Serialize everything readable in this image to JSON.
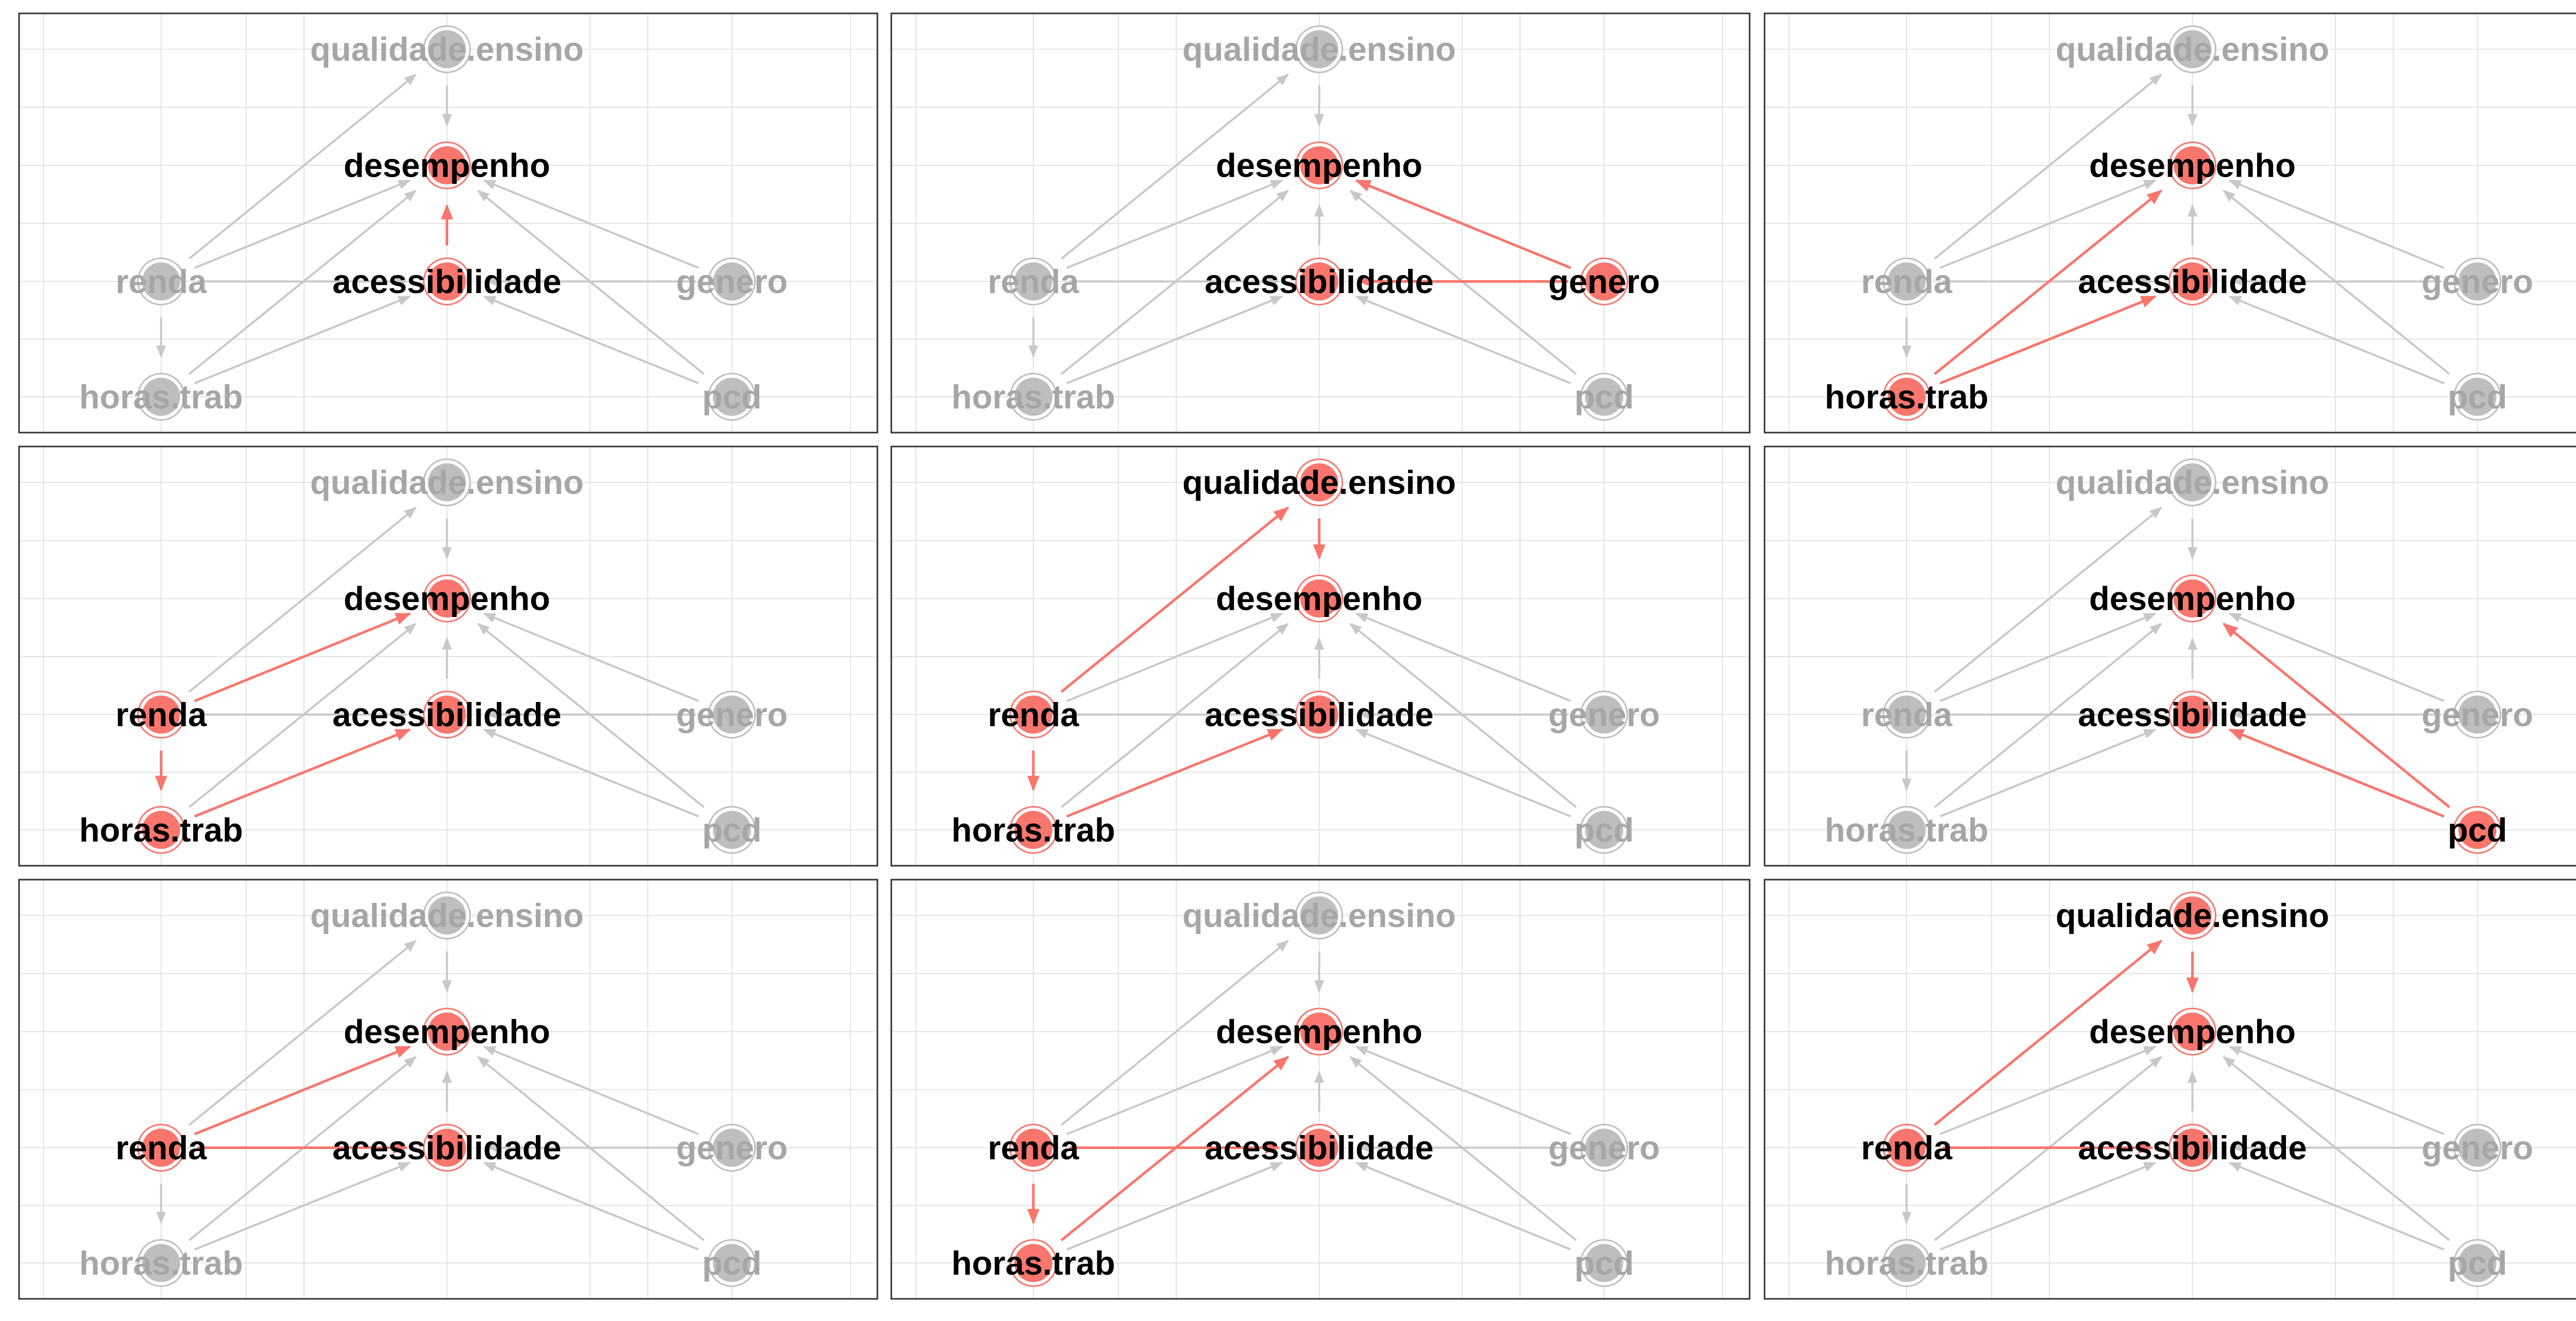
{
  "colors": {
    "highlight": "#F8766D",
    "dim_node": "#BEBEBE",
    "dim_edge": "#C8C8C8",
    "dim_label": "#A6A6A6",
    "active_label": "#000000",
    "grid": "#E2E2E2",
    "panel_border": "#333333"
  },
  "nodes": [
    {
      "id": "qualidade.ensino",
      "label": "qualidade.ensino",
      "x": 0,
      "y": 3
    },
    {
      "id": "desempenho",
      "label": "desempenho",
      "x": 0,
      "y": 2
    },
    {
      "id": "acessibilidade",
      "label": "acessibilidade",
      "x": 0,
      "y": 1
    },
    {
      "id": "renda",
      "label": "renda",
      "x": -1,
      "y": 1
    },
    {
      "id": "genero",
      "label": "genero",
      "x": 1,
      "y": 1
    },
    {
      "id": "horas.trab",
      "label": "horas.trab",
      "x": -1,
      "y": 0
    },
    {
      "id": "pcd",
      "label": "pcd",
      "x": 1,
      "y": 0
    }
  ],
  "edges": [
    {
      "from": "qualidade.ensino",
      "to": "desempenho"
    },
    {
      "from": "acessibilidade",
      "to": "desempenho"
    },
    {
      "from": "renda",
      "to": "desempenho"
    },
    {
      "from": "renda",
      "to": "qualidade.ensino"
    },
    {
      "from": "renda",
      "to": "acessibilidade"
    },
    {
      "from": "renda",
      "to": "horas.trab"
    },
    {
      "from": "genero",
      "to": "desempenho"
    },
    {
      "from": "genero",
      "to": "acessibilidade"
    },
    {
      "from": "horas.trab",
      "to": "desempenho"
    },
    {
      "from": "horas.trab",
      "to": "acessibilidade"
    },
    {
      "from": "pcd",
      "to": "desempenho"
    },
    {
      "from": "pcd",
      "to": "acessibilidade"
    }
  ],
  "panels": [
    {
      "nodes": [
        "desempenho",
        "acessibilidade"
      ],
      "edges": [
        [
          "acessibilidade",
          "desempenho"
        ]
      ]
    },
    {
      "nodes": [
        "desempenho",
        "acessibilidade",
        "genero"
      ],
      "edges": [
        [
          "genero",
          "desempenho"
        ],
        [
          "genero",
          "acessibilidade"
        ]
      ]
    },
    {
      "nodes": [
        "desempenho",
        "acessibilidade",
        "horas.trab"
      ],
      "edges": [
        [
          "horas.trab",
          "desempenho"
        ],
        [
          "horas.trab",
          "acessibilidade"
        ]
      ]
    },
    {
      "nodes": [
        "desempenho",
        "acessibilidade",
        "renda",
        "horas.trab"
      ],
      "edges": [
        [
          "renda",
          "desempenho"
        ],
        [
          "renda",
          "horas.trab"
        ],
        [
          "horas.trab",
          "acessibilidade"
        ]
      ]
    },
    {
      "nodes": [
        "qualidade.ensino",
        "desempenho",
        "acessibilidade",
        "renda",
        "horas.trab"
      ],
      "edges": [
        [
          "renda",
          "qualidade.ensino"
        ],
        [
          "qualidade.ensino",
          "desempenho"
        ],
        [
          "renda",
          "horas.trab"
        ],
        [
          "horas.trab",
          "acessibilidade"
        ]
      ]
    },
    {
      "nodes": [
        "desempenho",
        "acessibilidade",
        "pcd"
      ],
      "edges": [
        [
          "pcd",
          "desempenho"
        ],
        [
          "pcd",
          "acessibilidade"
        ]
      ]
    },
    {
      "nodes": [
        "desempenho",
        "acessibilidade",
        "renda"
      ],
      "edges": [
        [
          "renda",
          "desempenho"
        ],
        [
          "renda",
          "acessibilidade"
        ]
      ]
    },
    {
      "nodes": [
        "desempenho",
        "acessibilidade",
        "renda",
        "horas.trab"
      ],
      "edges": [
        [
          "renda",
          "acessibilidade"
        ],
        [
          "renda",
          "horas.trab"
        ],
        [
          "horas.trab",
          "desempenho"
        ]
      ]
    },
    {
      "nodes": [
        "qualidade.ensino",
        "desempenho",
        "acessibilidade",
        "renda"
      ],
      "edges": [
        [
          "renda",
          "qualidade.ensino"
        ],
        [
          "qualidade.ensino",
          "desempenho"
        ],
        [
          "renda",
          "acessibilidade"
        ]
      ]
    }
  ]
}
